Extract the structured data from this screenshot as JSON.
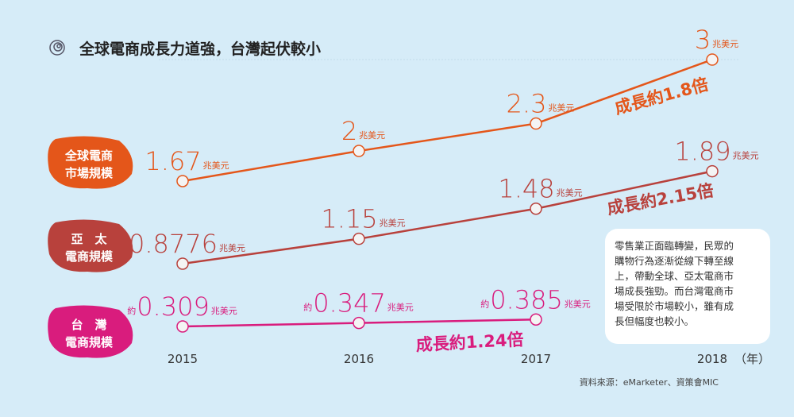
{
  "chart_data": {
    "type": "line",
    "title": "全球電商成長力道強，台灣起伏較小",
    "x": [
      "2015",
      "2016",
      "2017",
      "2018"
    ],
    "x_unit": "（年）",
    "unit": "兆美元",
    "series": [
      {
        "name": [
          "全球電商",
          "市場規模"
        ],
        "color": "#e4561a",
        "values": [
          1.67,
          2,
          2.3,
          3
        ],
        "growth": "成長約1.8倍"
      },
      {
        "name": [
          "亞　太",
          "電商規模"
        ],
        "color": "#b8413c",
        "values": [
          0.8776,
          1.15,
          1.48,
          1.89
        ],
        "growth": "成長約2.15倍"
      },
      {
        "name": [
          "台　灣",
          "電商規模"
        ],
        "color": "#d91c7d",
        "values": [
          0.309,
          0.347,
          0.385,
          null
        ],
        "value_prefix": "約",
        "growth": "成長約1.24倍"
      }
    ],
    "note": [
      "零售業正面臨轉變，民眾的",
      "購物行為逐漸從線下轉至線",
      "上，帶動全球、亞太電商市",
      "場成長強勁。而台灣電商市",
      "場受限於市場較小，雖有成",
      "長但幅度也較小。"
    ],
    "source": "資料來源：eMarketer、資策會MIC"
  }
}
